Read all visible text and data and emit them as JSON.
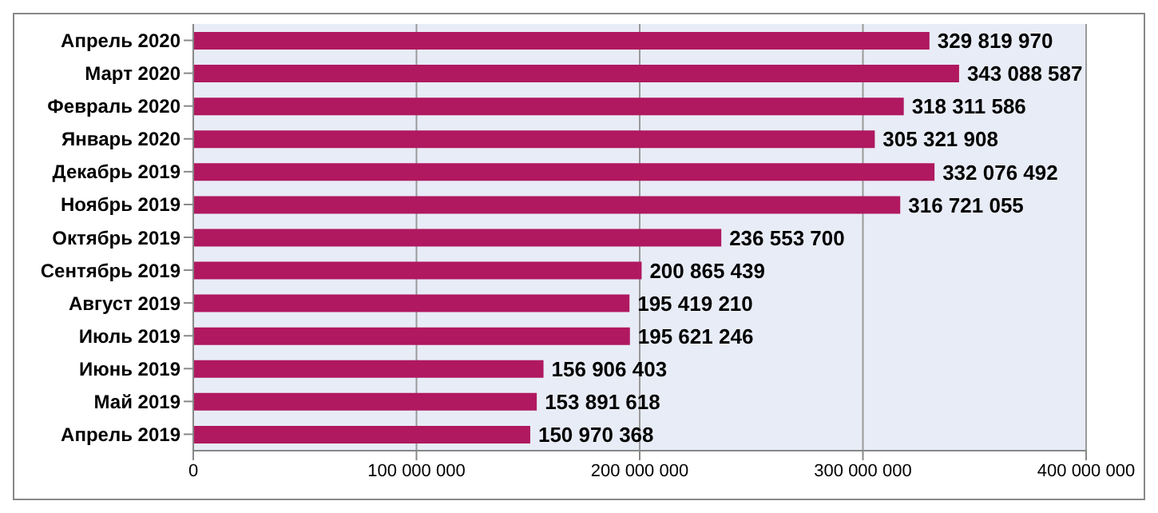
{
  "chart_data": {
    "type": "bar",
    "orientation": "horizontal",
    "categories": [
      "Апрель 2020",
      "Март 2020",
      "Февраль 2020",
      "Январь 2020",
      "Декабрь 2019",
      "Ноябрь 2019",
      "Октябрь 2019",
      "Сентябрь 2019",
      "Август 2019",
      "Июль 2019",
      "Июнь 2019",
      "Май 2019",
      "Апрель 2019"
    ],
    "values": [
      329819970,
      343088587,
      318311586,
      305321908,
      332076492,
      316721055,
      236553700,
      200865439,
      195419210,
      195621246,
      156906403,
      153891618,
      150970368
    ],
    "value_labels": [
      "329 819 970",
      "343 088 587",
      "318 311 586",
      "305 321 908",
      "332 076 492",
      "316 721 055",
      "236 553 700",
      "200 865 439",
      "195 419 210",
      "195 621 246",
      "156 906 403",
      "153 891 618",
      "150 970 368"
    ],
    "color": "#b01860",
    "xlim": [
      0,
      400000000
    ],
    "xticks": [
      {
        "value": 0,
        "label": "0"
      },
      {
        "value": 100000000,
        "label": "100 000 000"
      },
      {
        "value": 200000000,
        "label": "200 000 000"
      },
      {
        "value": 300000000,
        "label": "300 000 000"
      },
      {
        "value": 400000000,
        "label": "400 000 000"
      }
    ],
    "grid": "x",
    "legend": false
  }
}
